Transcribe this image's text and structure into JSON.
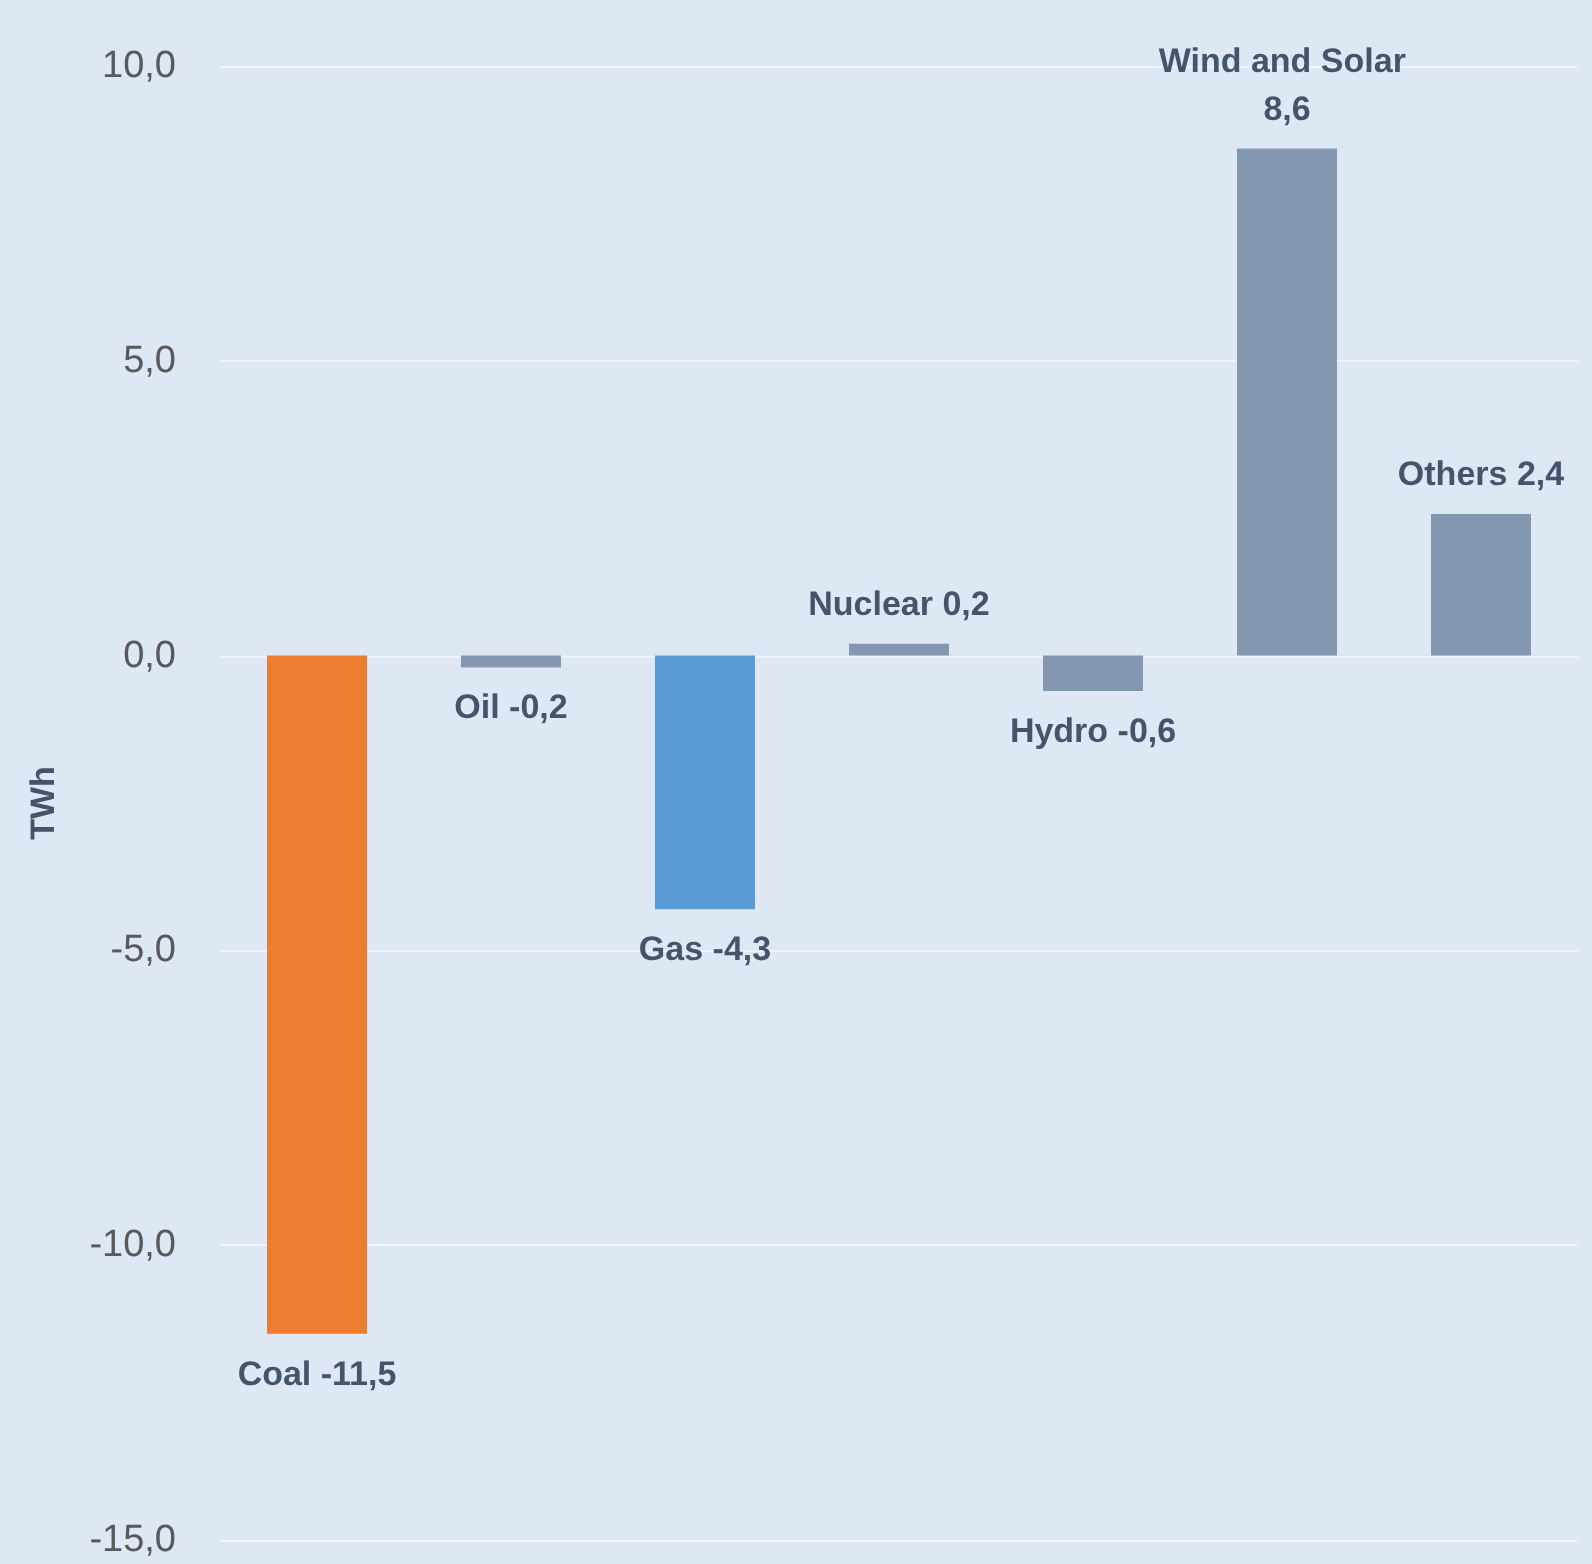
{
  "chart_data": {
    "type": "bar",
    "ylabel": "TWh",
    "categories": [
      null,
      null,
      null,
      null,
      null,
      null,
      null
    ],
    "values": [
      -11.5,
      -0.2,
      -4.3,
      0.2,
      -0.6,
      8.6,
      2.4
    ],
    "colors": [
      "#ed7d31",
      "#8497b0",
      "#5b9bd5",
      "#8497b0",
      "#8497b0",
      "#8497b0",
      "#8497b0"
    ],
    "value_labels": [
      "Coal -11,5",
      "Oil -0,2",
      "Gas -4,3",
      "Nuclear 0,2",
      "Hydro -0,6",
      "Wind and Solar 8,6",
      "Others 2,4"
    ],
    "ylim": [
      -15,
      10
    ],
    "yticks": [
      {
        "value": -15,
        "label": "-15,0"
      },
      {
        "value": -10,
        "label": "-10,0"
      },
      {
        "value": -5,
        "label": "-5,0"
      },
      {
        "value": 0,
        "label": "0,0"
      },
      {
        "value": 5,
        "label": "5,0"
      },
      {
        "value": 10,
        "label": "10,0"
      }
    ],
    "grid": "y"
  }
}
